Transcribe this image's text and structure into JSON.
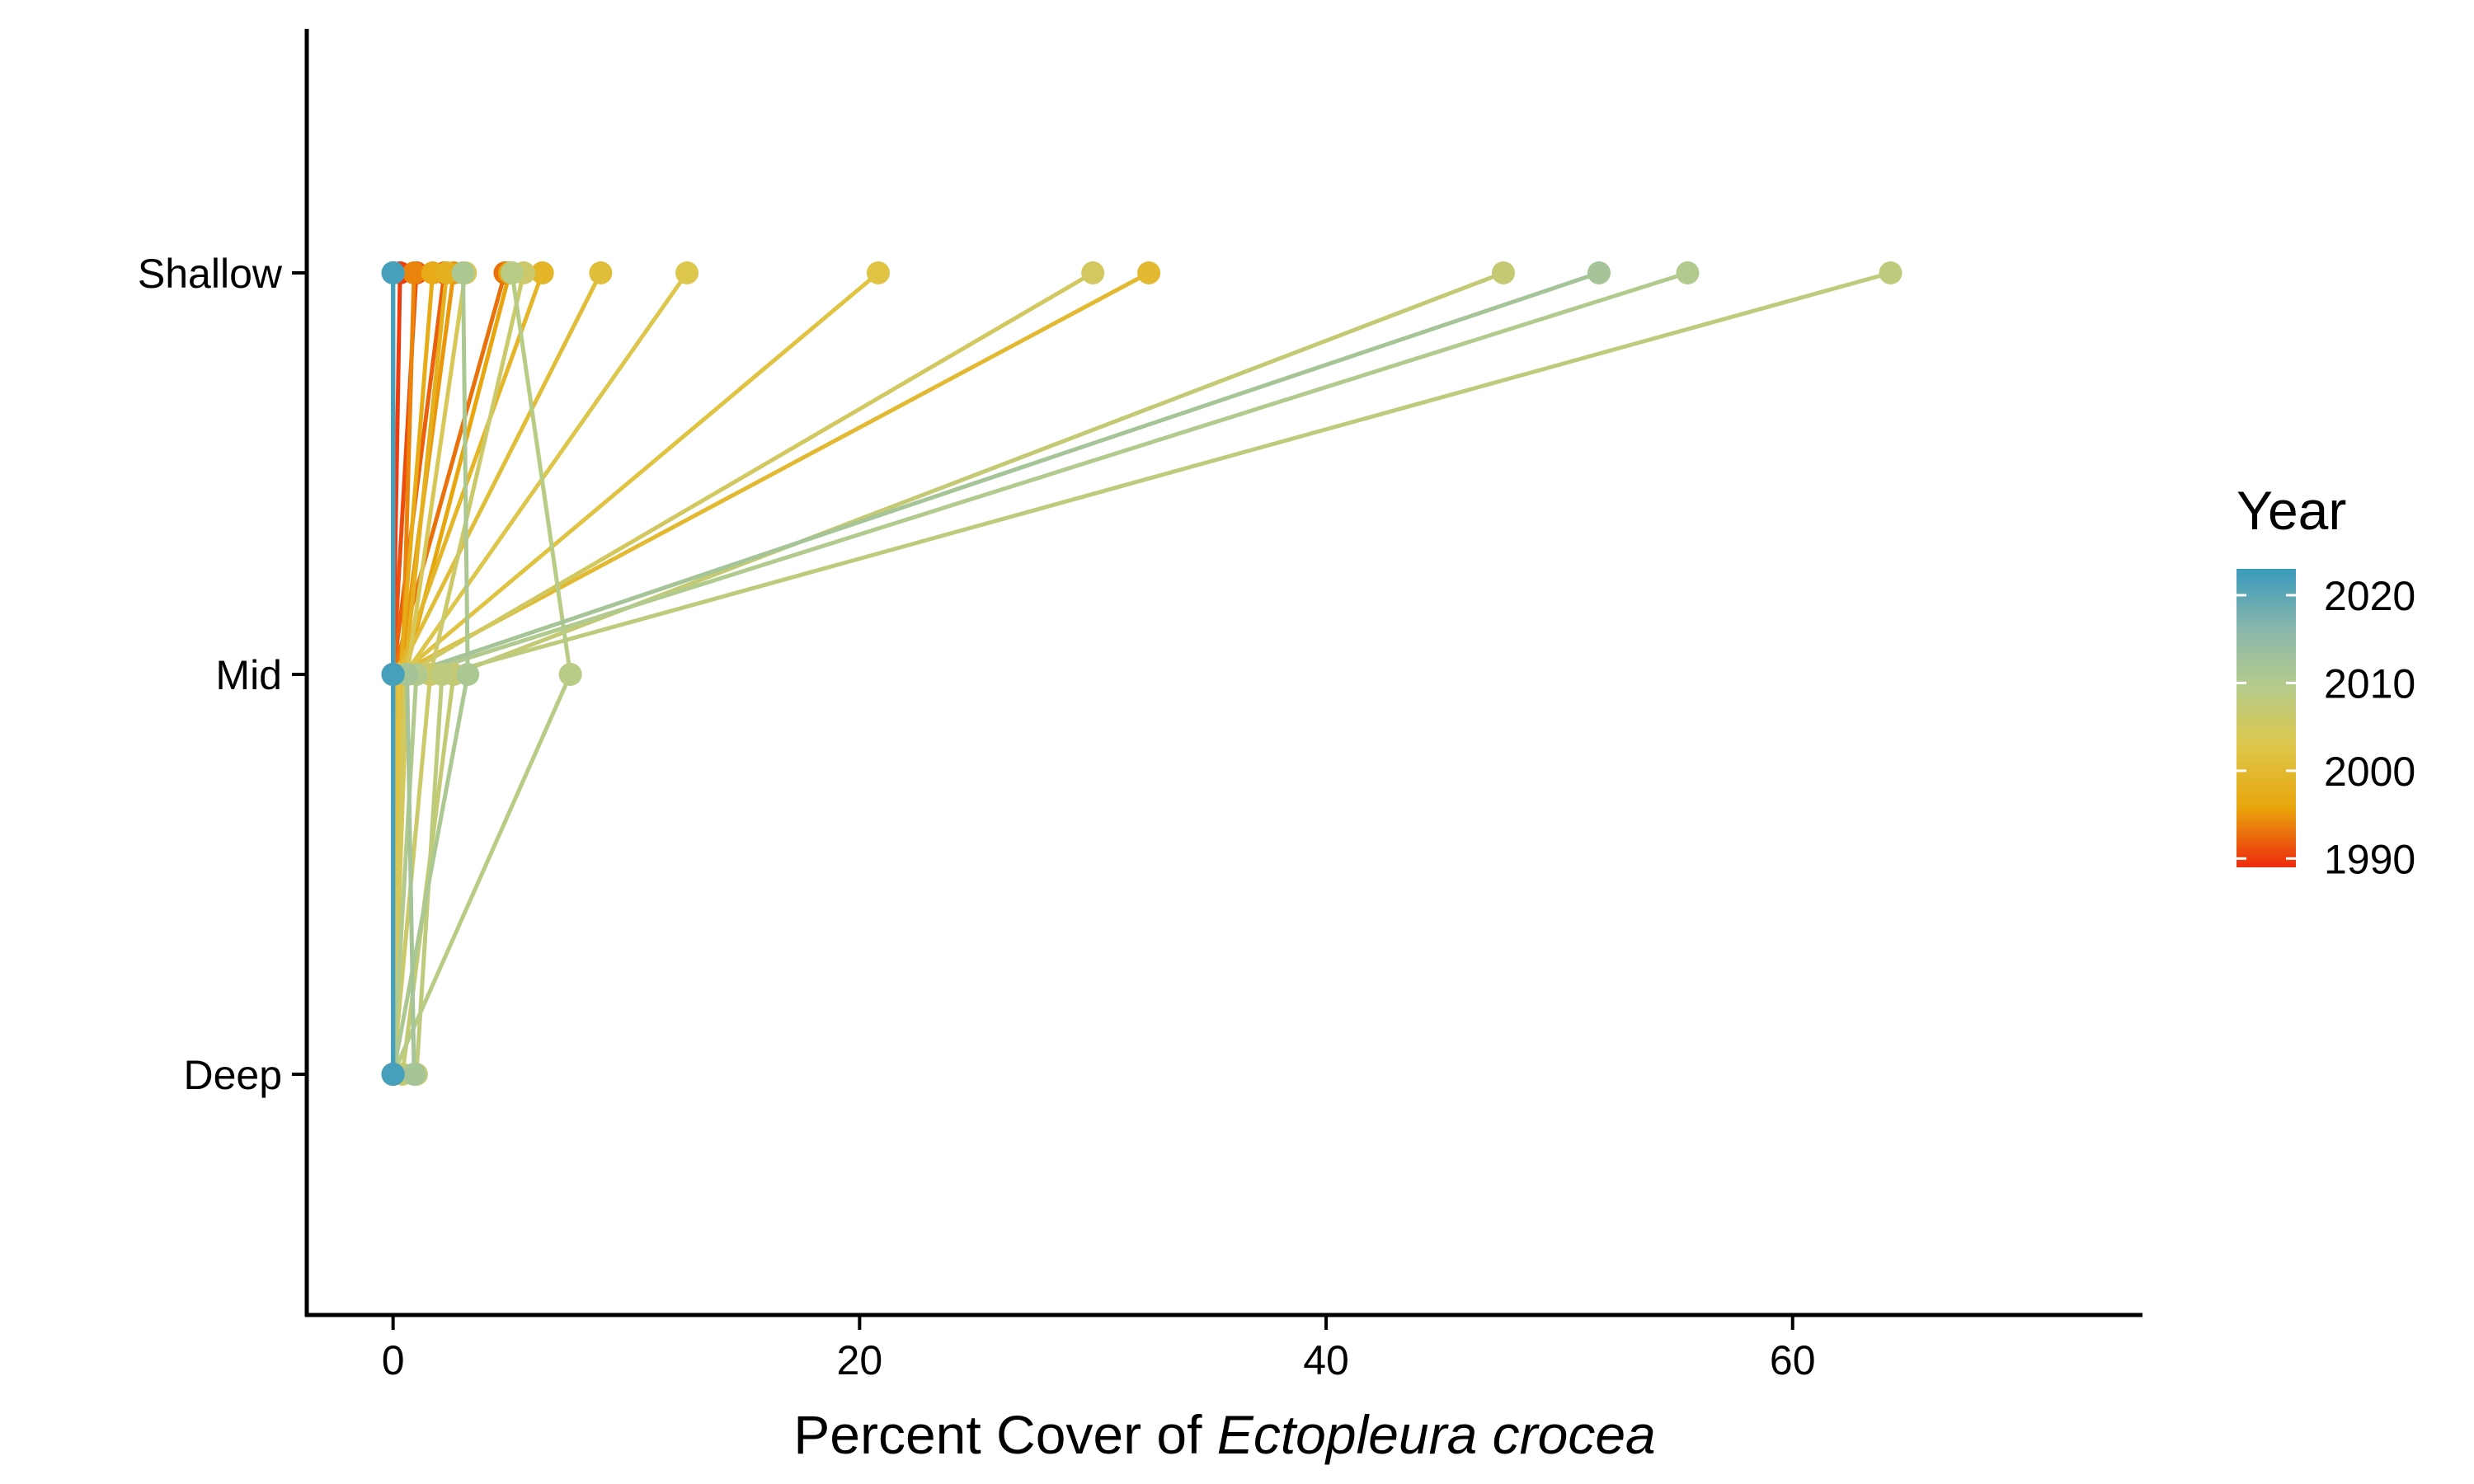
{
  "chart_data": {
    "type": "line",
    "xlabel_prefix": "Percent Cover of ",
    "xlabel_italic": "Ectopleura crocea",
    "ylabel": "",
    "xlim": [
      -3.7,
      75
    ],
    "x_ticks": [
      0,
      20,
      40,
      60
    ],
    "y_categories": [
      "Shallow",
      "Mid",
      "Deep"
    ],
    "legend": {
      "title": "Year",
      "position": "right",
      "range": [
        1989,
        2023
      ],
      "ticks": [
        2020,
        2010,
        2000,
        1990
      ],
      "colors": [
        "#ee2a0e",
        "#e8a50c",
        "#dfc648",
        "#b6cc8a",
        "#89b6ac",
        "#3a9bbd"
      ]
    },
    "series": [
      {
        "year": 1990,
        "values": [
          0,
          0,
          0.3
        ]
      },
      {
        "year": 1991,
        "values": [
          0,
          0,
          1.0
        ]
      },
      {
        "year": 1992,
        "values": [
          0,
          0,
          2.2
        ]
      },
      {
        "year": 1993,
        "values": [
          0,
          0,
          4.8
        ]
      },
      {
        "year": 1994,
        "values": [
          0,
          0.4,
          0.9
        ]
      },
      {
        "year": 1995,
        "values": [
          0,
          0.3,
          2.6
        ]
      },
      {
        "year": 1996,
        "values": [
          0,
          0.5,
          5.0
        ]
      },
      {
        "year": 1997,
        "values": [
          0,
          0.3,
          1.7
        ]
      },
      {
        "year": 1998,
        "values": [
          0,
          0.5,
          2.3
        ]
      },
      {
        "year": 1999,
        "values": [
          0,
          0.2,
          6.4
        ]
      },
      {
        "year": 2000,
        "values": [
          0,
          0.2,
          32.4
        ]
      },
      {
        "year": 2001,
        "values": [
          0,
          0.2,
          8.9
        ]
      },
      {
        "year": 2002,
        "values": [
          0,
          0.3,
          20.8
        ]
      },
      {
        "year": 2003,
        "values": [
          0,
          0.5,
          12.6
        ]
      },
      {
        "year": 2004,
        "values": [
          0,
          0.6,
          3.1
        ]
      },
      {
        "year": 2005,
        "values": [
          0,
          0.5,
          30.0
        ]
      },
      {
        "year": 2006,
        "values": [
          0,
          1.6,
          5.6
        ]
      },
      {
        "year": 2007,
        "values": [
          0.4,
          2.6,
          47.6
        ]
      },
      {
        "year": 2008,
        "values": [
          1.0,
          2.1,
          64.2
        ]
      },
      {
        "year": 2009,
        "values": [
          0,
          7.6,
          5.1
        ]
      },
      {
        "year": 2010,
        "values": [
          0,
          1.0,
          55.5
        ]
      },
      {
        "year": 2011,
        "values": [
          0,
          3.2,
          3.0
        ]
      },
      {
        "year": 2012,
        "values": [
          0.9,
          0.6,
          51.7
        ]
      },
      {
        "year": 2014,
        "values": [
          0,
          0,
          0
        ]
      },
      {
        "year": 2016,
        "values": [
          0,
          0,
          0
        ]
      },
      {
        "year": 2018,
        "values": [
          0,
          0,
          0
        ]
      },
      {
        "year": 2020,
        "values": [
          0,
          0,
          0
        ]
      },
      {
        "year": 2022,
        "values": [
          0,
          0,
          0
        ]
      }
    ]
  }
}
